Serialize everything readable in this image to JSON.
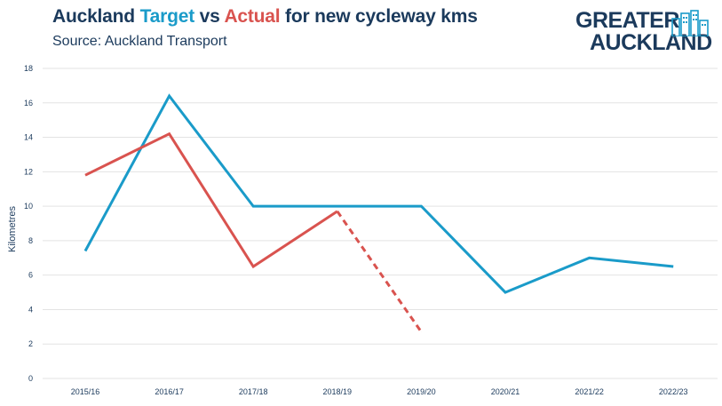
{
  "header": {
    "title_prefix": "Auckland ",
    "title_target": "Target",
    "title_vs": " vs ",
    "title_actual": "Actual",
    "title_suffix": " for new cycleway kms",
    "subtitle": "Source: Auckland Transport"
  },
  "logo": {
    "line1": "GREATER",
    "line2": "AUCKLAND",
    "icon": "city-buildings-icon"
  },
  "colors": {
    "title": "#1b3a5c",
    "target": "#1a9bc9",
    "actual": "#d9534f",
    "grid": "#e3e3e3"
  },
  "chart_data": {
    "type": "line",
    "title": "Auckland Target vs Actual for new cycleway kms",
    "subtitle": "Source: Auckland Transport",
    "xlabel": "",
    "ylabel": "Kilometres",
    "ylim": [
      0,
      18
    ],
    "yticks": [
      0,
      2,
      4,
      6,
      8,
      10,
      12,
      14,
      16,
      18
    ],
    "grid": true,
    "legend": "none",
    "categories": [
      "2015/16",
      "2016/17",
      "2017/18",
      "2018/19",
      "2019/20",
      "2020/21",
      "2021/22",
      "2022/23"
    ],
    "series": [
      {
        "name": "Target",
        "color": "#1a9bc9",
        "values": [
          7.4,
          16.4,
          10.0,
          10.0,
          10.0,
          5.0,
          7.0,
          6.5
        ]
      },
      {
        "name": "Actual",
        "color": "#d9534f",
        "values": [
          11.8,
          14.2,
          6.5,
          9.7,
          null,
          null,
          null,
          null
        ]
      },
      {
        "color": "#d9534f",
        "dashed": true,
        "values": [
          null,
          null,
          null,
          9.7,
          2.7,
          null,
          null,
          null
        ]
      }
    ]
  }
}
